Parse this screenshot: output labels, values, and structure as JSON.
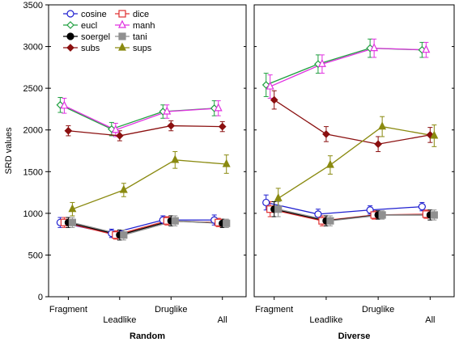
{
  "chart_data": {
    "type": "line",
    "ylabel": "SRD values",
    "ylim": [
      0,
      3500
    ],
    "yticks": [
      0,
      500,
      1000,
      1500,
      2000,
      2500,
      3000,
      3500
    ],
    "grid": false,
    "legend_position": "top-left",
    "categories": [
      "Fragment",
      "Leadlike",
      "Druglike",
      "All"
    ],
    "panels": [
      {
        "title": "Random",
        "series": [
          {
            "name": "cosine",
            "values": [
              890,
              760,
              920,
              920
            ],
            "err": [
              60,
              50,
              50,
              60
            ]
          },
          {
            "name": "dice",
            "values": [
              890,
              740,
              910,
              890
            ],
            "err": [
              60,
              50,
              50,
              50
            ]
          },
          {
            "name": "eucl",
            "values": [
              2300,
              2010,
              2220,
              2260
            ],
            "err": [
              90,
              80,
              80,
              90
            ]
          },
          {
            "name": "manh",
            "values": [
              2290,
              2000,
              2220,
              2260
            ],
            "err": [
              90,
              80,
              80,
              90
            ]
          },
          {
            "name": "soergel",
            "values": [
              890,
              740,
              910,
              880
            ],
            "err": [
              60,
              60,
              60,
              50
            ]
          },
          {
            "name": "tani",
            "values": [
              890,
              740,
              910,
              880
            ],
            "err": [
              60,
              60,
              60,
              50
            ]
          },
          {
            "name": "subs",
            "values": [
              1990,
              1930,
              2050,
              2040
            ],
            "err": [
              60,
              60,
              60,
              60
            ]
          },
          {
            "name": "sups",
            "values": [
              1050,
              1280,
              1640,
              1590
            ],
            "err": [
              80,
              80,
              100,
              110
            ]
          }
        ]
      },
      {
        "title": "Diverse",
        "series": [
          {
            "name": "cosine",
            "values": [
              1130,
              990,
              1040,
              1080
            ],
            "err": [
              90,
              60,
              50,
              50
            ]
          },
          {
            "name": "dice",
            "values": [
              1050,
              910,
              980,
              990
            ],
            "err": [
              90,
              60,
              50,
              50
            ]
          },
          {
            "name": "eucl",
            "values": [
              2540,
              2790,
              2980,
              2960
            ],
            "err": [
              140,
              110,
              110,
              90
            ]
          },
          {
            "name": "manh",
            "values": [
              2520,
              2790,
              2980,
              2960
            ],
            "err": [
              140,
              110,
              110,
              90
            ]
          },
          {
            "name": "soergel",
            "values": [
              1050,
              910,
              980,
              980
            ],
            "err": [
              90,
              60,
              50,
              60
            ]
          },
          {
            "name": "tani",
            "values": [
              1050,
              910,
              980,
              980
            ],
            "err": [
              90,
              60,
              50,
              60
            ]
          },
          {
            "name": "subs",
            "values": [
              2360,
              1950,
              1830,
              1940
            ],
            "err": [
              110,
              90,
              90,
              90
            ]
          },
          {
            "name": "sups",
            "values": [
              1180,
              1580,
              2040,
              1930
            ],
            "err": [
              120,
              110,
              120,
              130
            ]
          }
        ]
      }
    ],
    "styles": {
      "cosine": {
        "color": "#2020d0",
        "marker": "circle-open"
      },
      "dice": {
        "color": "#e03030",
        "marker": "square-open"
      },
      "eucl": {
        "color": "#20a040",
        "marker": "diamond-open"
      },
      "manh": {
        "color": "#e030e0",
        "marker": "triangle-open"
      },
      "soergel": {
        "color": "#000000",
        "marker": "circle-filled"
      },
      "tani": {
        "color": "#909090",
        "marker": "square-filled"
      },
      "subs": {
        "color": "#8b1010",
        "marker": "diamond-filled"
      },
      "sups": {
        "color": "#8a8a10",
        "marker": "triangle-filled"
      }
    }
  }
}
